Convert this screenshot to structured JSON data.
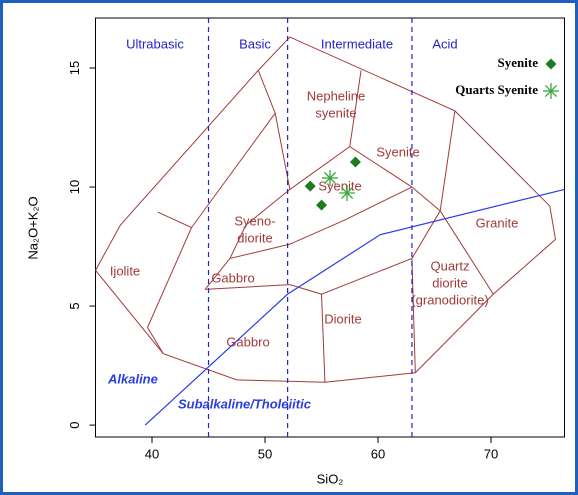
{
  "chart_data": {
    "type": "scatter",
    "xlabel": "SiO₂",
    "ylabel": "Na₂O+K₂O",
    "xlim": [
      35,
      76.5
    ],
    "ylim": [
      -0.5,
      17.1
    ],
    "xticks": [
      40,
      50,
      60,
      70
    ],
    "yticks": [
      0,
      5,
      10,
      15
    ],
    "legend": "top-right",
    "series": [
      {
        "name": "Syenite",
        "color": "#1e7b1e",
        "marker": "diamond",
        "x": [
          54.0,
          58.0,
          55.0
        ],
        "values": [
          10.04,
          11.05,
          9.24
        ]
      },
      {
        "name": "Quarts Syenite",
        "color": "#3aa63a",
        "marker": "star",
        "x": [
          55.75,
          57.26
        ],
        "values": [
          10.38,
          9.75
        ]
      }
    ],
    "region_labels": [
      "Ultrabasic",
      "Basic",
      "Intermediate",
      "Acid"
    ],
    "region_dividers": [
      45,
      52,
      63
    ],
    "region_color": "#2323c8",
    "field_color": "#a33a3a",
    "field_boundaries": [
      [
        [
          35,
          6.5
        ],
        [
          41,
          3
        ],
        [
          47.5,
          1.9
        ],
        [
          55.3,
          1.8
        ],
        [
          63.3,
          2.2
        ],
        [
          70.2,
          5.5
        ],
        [
          75.7,
          7.8
        ],
        [
          75.2,
          9.2
        ],
        [
          66.8,
          13.2
        ],
        [
          52.2,
          16.3
        ],
        [
          49.4,
          14.9
        ],
        [
          37.2,
          8.4
        ],
        [
          35,
          6.5
        ]
      ],
      [
        [
          40.5,
          8.95
        ],
        [
          43.5,
          8.3
        ],
        [
          39.6,
          4.1
        ],
        [
          41,
          3
        ]
      ],
      [
        [
          43.5,
          8.3
        ],
        [
          50.9,
          13.1
        ],
        [
          49.4,
          14.9
        ]
      ],
      [
        [
          50.9,
          13.1
        ],
        [
          52.2,
          9.9
        ]
      ],
      [
        [
          52.2,
          9.9
        ],
        [
          57.5,
          11.7
        ],
        [
          63,
          10
        ],
        [
          65.5,
          9
        ]
      ],
      [
        [
          57.5,
          11.7
        ],
        [
          58.5,
          14.9
        ]
      ],
      [
        [
          46.9,
          7
        ],
        [
          48.3,
          8.4
        ],
        [
          52.2,
          9.9
        ]
      ],
      [
        [
          46.9,
          7
        ],
        [
          52.2,
          7.6
        ],
        [
          57,
          8.6
        ],
        [
          63,
          10
        ]
      ],
      [
        [
          44.7,
          5.7
        ],
        [
          52.2,
          5.9
        ],
        [
          55,
          5.5
        ],
        [
          63,
          7
        ]
      ],
      [
        [
          44.7,
          5.7
        ],
        [
          46.9,
          7
        ]
      ],
      [
        [
          55,
          5.5
        ],
        [
          55.3,
          1.8
        ]
      ],
      [
        [
          63,
          7
        ],
        [
          63.3,
          2.2
        ]
      ],
      [
        [
          63,
          7
        ],
        [
          65.5,
          9
        ],
        [
          70.2,
          5.5
        ]
      ],
      [
        [
          65.5,
          9
        ],
        [
          66.8,
          13.2
        ]
      ]
    ],
    "field_labels": [
      [
        "Ijolite"
      ],
      [
        "Gabbro"
      ],
      [
        "Gabbro"
      ],
      [
        "Syeno-",
        "diorite"
      ],
      [
        "Syenite"
      ],
      [
        "Nepheline",
        "syenite"
      ],
      [
        "Syenite"
      ],
      [
        "Granite"
      ],
      [
        "Quartz",
        "diorite",
        "(granodiorite)"
      ],
      [
        "Diorite"
      ]
    ],
    "series_line": {
      "name_above": "Alkaline",
      "name_below": "Subalkaline/Tholeiitic",
      "color": "#2a3ee0",
      "x": [
        39.4,
        52,
        60.2,
        76.5
      ],
      "values": [
        0,
        5.5,
        8,
        9.9
      ]
    }
  }
}
